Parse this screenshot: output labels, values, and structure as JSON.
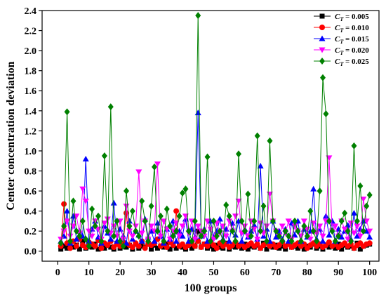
{
  "chart_data": {
    "type": "line",
    "title": "",
    "xlabel": "100 groups",
    "ylabel": "Center concentration deviation",
    "xlim": [
      -5,
      103
    ],
    "ylim": [
      -0.1,
      2.4
    ],
    "xticks": [
      0,
      10,
      20,
      30,
      40,
      50,
      60,
      70,
      80,
      90,
      100
    ],
    "yticks": [
      0.0,
      0.2,
      0.4,
      0.6,
      0.8,
      1.0,
      1.2,
      1.4,
      1.6,
      1.8,
      2.0,
      2.2,
      2.4
    ],
    "xtick_labels": [
      "0",
      "10",
      "20",
      "30",
      "40",
      "50",
      "60",
      "70",
      "80",
      "90",
      "100"
    ],
    "ytick_labels": [
      "0.0",
      "0.2",
      "0.4",
      "0.6",
      "0.8",
      "1.0",
      "1.2",
      "1.4",
      "1.6",
      "1.8",
      "2.0",
      "2.2",
      "2.4"
    ],
    "legend_position": "top-right",
    "grid": false,
    "x": [
      1,
      2,
      3,
      4,
      5,
      6,
      7,
      8,
      9,
      10,
      11,
      12,
      13,
      14,
      15,
      16,
      17,
      18,
      19,
      20,
      21,
      22,
      23,
      24,
      25,
      26,
      27,
      28,
      29,
      30,
      31,
      32,
      33,
      34,
      35,
      36,
      37,
      38,
      39,
      40,
      41,
      42,
      43,
      44,
      45,
      46,
      47,
      48,
      49,
      50,
      51,
      52,
      53,
      54,
      55,
      56,
      57,
      58,
      59,
      60,
      61,
      62,
      63,
      64,
      65,
      66,
      67,
      68,
      69,
      70,
      71,
      72,
      73,
      74,
      75,
      76,
      77,
      78,
      79,
      80,
      81,
      82,
      83,
      84,
      85,
      86,
      87,
      88,
      89,
      90,
      91,
      92,
      93,
      94,
      95,
      96,
      97,
      98,
      99,
      100
    ],
    "series": [
      {
        "name": "C_T = 0.005",
        "name_main": "C",
        "name_sub": "T",
        "name_rest": " = 0.005",
        "color": "#000000",
        "marker": "square",
        "values": [
          0.02,
          0.05,
          0.03,
          0.08,
          0.04,
          0.06,
          0.02,
          0.1,
          0.03,
          0.05,
          0.04,
          0.07,
          0.02,
          0.05,
          0.03,
          0.06,
          0.04,
          0.02,
          0.08,
          0.03,
          0.05,
          0.04,
          0.06,
          0.02,
          0.07,
          0.03,
          0.05,
          0.04,
          0.08,
          0.02,
          0.06,
          0.03,
          0.05,
          0.04,
          0.07,
          0.02,
          0.06,
          0.03,
          0.05,
          0.04,
          0.02,
          0.06,
          0.03,
          0.05,
          0.2,
          0.04,
          0.07,
          0.03,
          0.05,
          0.02,
          0.06,
          0.04,
          0.03,
          0.08,
          0.02,
          0.05,
          0.04,
          0.06,
          0.03,
          0.07,
          0.02,
          0.05,
          0.04,
          0.06,
          0.03,
          0.08,
          0.02,
          0.05,
          0.04,
          0.06,
          0.03,
          0.05,
          0.02,
          0.07,
          0.04,
          0.05,
          0.03,
          0.06,
          0.02,
          0.05,
          0.04,
          0.07,
          0.03,
          0.05,
          0.02,
          0.06,
          0.04,
          0.05,
          0.03,
          0.07,
          0.02,
          0.06,
          0.04,
          0.05,
          0.03,
          0.08,
          0.02,
          0.05,
          0.06,
          0.07
        ]
      },
      {
        "name": "C_T = 0.010",
        "name_main": "C",
        "name_sub": "T",
        "name_rest": " = 0.010",
        "color": "#ff0000",
        "marker": "circle",
        "values": [
          0.05,
          0.47,
          0.08,
          0.03,
          0.1,
          0.05,
          0.12,
          0.06,
          0.04,
          0.09,
          0.07,
          0.05,
          0.11,
          0.03,
          0.08,
          0.06,
          0.1,
          0.04,
          0.07,
          0.05,
          0.09,
          0.38,
          0.06,
          0.04,
          0.08,
          0.05,
          0.1,
          0.03,
          0.07,
          0.06,
          0.08,
          0.12,
          0.05,
          0.07,
          0.04,
          0.09,
          0.06,
          0.4,
          0.05,
          0.07,
          0.04,
          0.06,
          0.08,
          0.05,
          0.1,
          0.04,
          0.07,
          0.05,
          0.09,
          0.06,
          0.03,
          0.08,
          0.05,
          0.07,
          0.04,
          0.06,
          0.09,
          0.05,
          0.07,
          0.04,
          0.06,
          0.08,
          0.05,
          0.07,
          0.03,
          0.06,
          0.08,
          0.05,
          0.07,
          0.04,
          0.06,
          0.09,
          0.05,
          0.07,
          0.04,
          0.06,
          0.08,
          0.05,
          0.07,
          0.03,
          0.06,
          0.08,
          0.05,
          0.07,
          0.04,
          0.06,
          0.09,
          0.05,
          0.07,
          0.04,
          0.06,
          0.08,
          0.05,
          0.07,
          0.03,
          0.06,
          0.08,
          0.05,
          0.07,
          0.08
        ]
      },
      {
        "name": "C_T = 0.015",
        "name_main": "C",
        "name_sub": "T",
        "name_rest": " = 0.015",
        "color": "#0000ff",
        "marker": "triangle",
        "values": [
          0.1,
          0.15,
          0.4,
          0.08,
          0.35,
          0.12,
          0.2,
          0.15,
          0.92,
          0.1,
          0.22,
          0.3,
          0.14,
          0.08,
          0.25,
          0.18,
          0.12,
          0.48,
          0.1,
          0.22,
          0.15,
          0.08,
          0.3,
          0.12,
          0.2,
          0.16,
          0.1,
          0.32,
          0.14,
          0.2,
          0.1,
          0.28,
          0.15,
          0.08,
          0.22,
          0.12,
          0.3,
          0.1,
          0.2,
          0.15,
          0.32,
          0.1,
          0.22,
          0.14,
          1.38,
          0.15,
          0.22,
          0.1,
          0.3,
          0.14,
          0.2,
          0.32,
          0.12,
          0.22,
          0.1,
          0.28,
          0.16,
          0.3,
          0.1,
          0.22,
          0.14,
          0.2,
          0.26,
          0.12,
          0.85,
          0.15,
          0.22,
          0.1,
          0.3,
          0.14,
          0.2,
          0.12,
          0.22,
          0.1,
          0.28,
          0.16,
          0.3,
          0.1,
          0.22,
          0.14,
          0.2,
          0.62,
          0.12,
          0.22,
          0.1,
          0.35,
          0.16,
          0.3,
          0.1,
          0.22,
          0.14,
          0.2,
          0.26,
          0.12,
          0.38,
          0.15,
          0.22,
          0.3,
          0.2,
          0.14
        ]
      },
      {
        "name": "C_T = 0.020",
        "name_main": "C",
        "name_sub": "T",
        "name_rest": " = 0.020",
        "color": "#ff00ff",
        "marker": "triangle-down",
        "values": [
          0.12,
          0.2,
          0.3,
          0.15,
          0.25,
          0.35,
          0.18,
          0.62,
          0.5,
          0.2,
          0.15,
          0.3,
          0.22,
          0.12,
          0.28,
          0.32,
          0.18,
          0.25,
          0.15,
          0.3,
          0.12,
          0.45,
          0.2,
          0.15,
          0.25,
          0.79,
          0.18,
          0.3,
          0.12,
          0.25,
          0.2,
          0.87,
          0.15,
          0.3,
          0.22,
          0.12,
          0.2,
          0.28,
          0.15,
          0.25,
          0.35,
          0.18,
          0.3,
          0.12,
          0.25,
          0.2,
          0.15,
          0.3,
          0.22,
          0.12,
          0.28,
          0.18,
          0.25,
          0.15,
          0.3,
          0.2,
          0.35,
          0.5,
          0.18,
          0.25,
          0.15,
          0.3,
          0.22,
          0.12,
          0.28,
          0.18,
          0.25,
          0.57,
          0.3,
          0.2,
          0.15,
          0.25,
          0.18,
          0.3,
          0.12,
          0.25,
          0.2,
          0.15,
          0.3,
          0.22,
          0.12,
          0.28,
          0.18,
          0.25,
          0.15,
          0.3,
          0.93,
          0.2,
          0.25,
          0.15,
          0.3,
          0.22,
          0.12,
          0.28,
          0.18,
          0.25,
          0.15,
          0.52,
          0.3,
          0.2
        ]
      },
      {
        "name": "C_T = 0.025",
        "name_main": "C",
        "name_sub": "T",
        "name_rest": " = 0.025",
        "color": "#008000",
        "marker": "diamond",
        "values": [
          0.08,
          0.25,
          1.39,
          0.1,
          0.5,
          0.2,
          0.15,
          0.3,
          0.12,
          0.05,
          0.42,
          0.25,
          0.35,
          0.1,
          0.95,
          0.2,
          1.44,
          0.15,
          0.3,
          0.1,
          0.05,
          0.6,
          0.25,
          0.4,
          0.2,
          0.15,
          0.5,
          0.3,
          0.1,
          0.45,
          0.84,
          0.2,
          0.35,
          0.1,
          0.42,
          0.25,
          0.15,
          0.2,
          0.35,
          0.58,
          0.62,
          0.2,
          0.1,
          0.3,
          2.35,
          0.15,
          0.2,
          0.94,
          0.1,
          0.3,
          0.15,
          0.2,
          0.1,
          0.46,
          0.35,
          0.2,
          0.1,
          0.97,
          0.3,
          0.2,
          0.57,
          0.15,
          0.3,
          1.15,
          0.2,
          0.45,
          0.1,
          1.1,
          0.3,
          0.2,
          0.15,
          0.1,
          0.2,
          0.15,
          0.1,
          0.3,
          0.2,
          0.1,
          0.25,
          0.15,
          0.4,
          0.2,
          0.1,
          0.6,
          1.73,
          1.37,
          0.3,
          0.2,
          0.1,
          0.15,
          0.3,
          0.38,
          0.2,
          0.1,
          1.05,
          0.3,
          0.65,
          0.2,
          0.45,
          0.56
        ]
      }
    ]
  }
}
